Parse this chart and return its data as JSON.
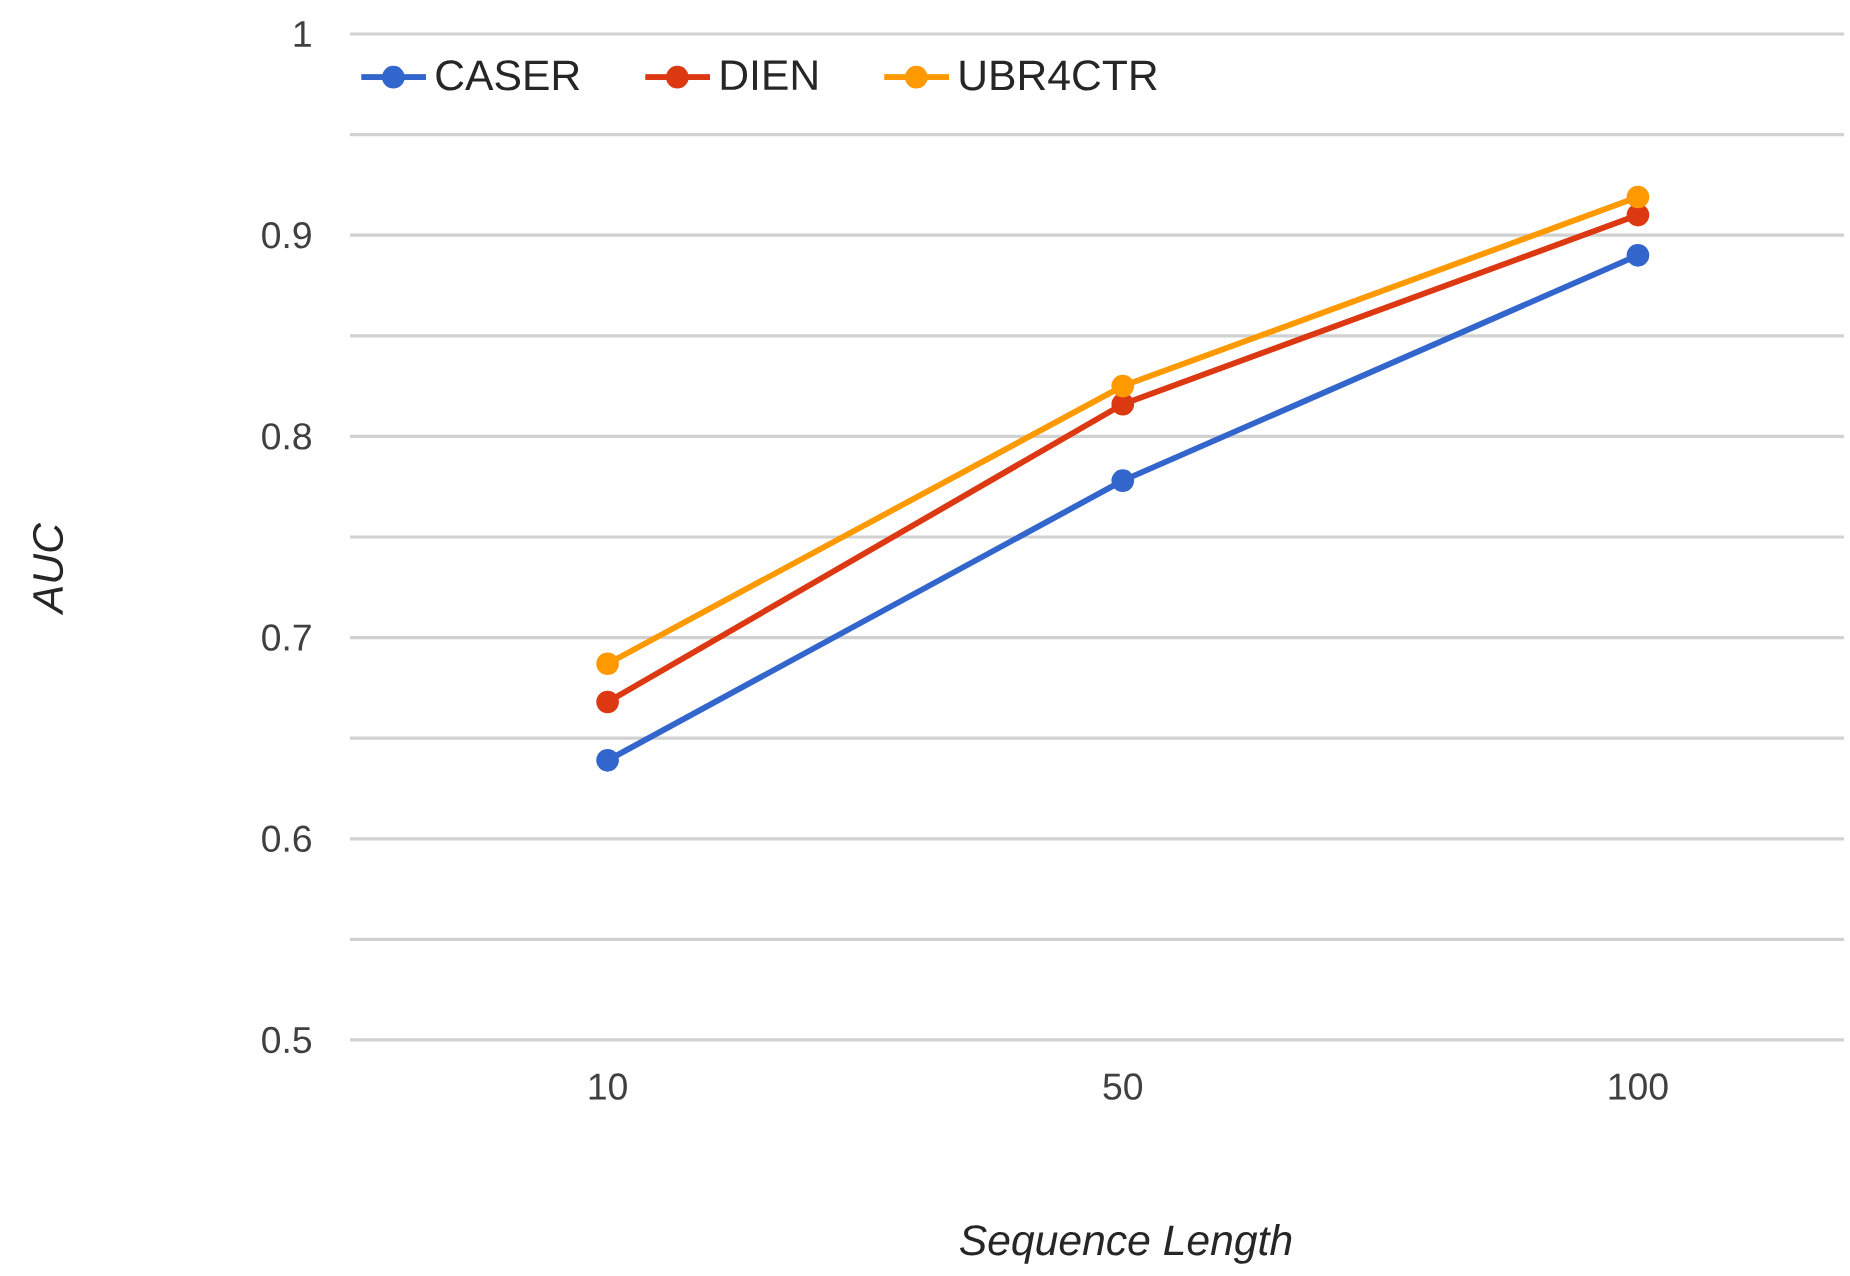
{
  "chart_data": {
    "type": "line",
    "xlabel": "*Sequence Length*",
    "ylabel": "*AUC*",
    "categories": [
      "10",
      "50",
      "100"
    ],
    "series": [
      {
        "name": "CASER",
        "color": "#3366cc",
        "values": [
          0.639,
          0.778,
          0.89
        ]
      },
      {
        "name": "DIEN",
        "color": "#dc3912",
        "values": [
          0.668,
          0.816,
          0.91
        ]
      },
      {
        "name": "UBR4CTR",
        "color": "#ff9900",
        "values": [
          0.687,
          0.825,
          0.919
        ]
      }
    ],
    "ylim": [
      0.5,
      1
    ],
    "yticks": [
      0.5,
      {
        "value": 0.55,
        "label": null
      },
      0.6,
      {
        "value": 0.65,
        "label": null
      },
      0.7,
      {
        "value": 0.75,
        "label": null
      },
      0.8,
      {
        "value": 0.85,
        "label": null
      },
      0.9,
      {
        "value": 0.95,
        "label": null
      },
      1
    ],
    "grid": "y",
    "legend": "top left",
    "marker": "circle",
    "line_style": "solid"
  }
}
